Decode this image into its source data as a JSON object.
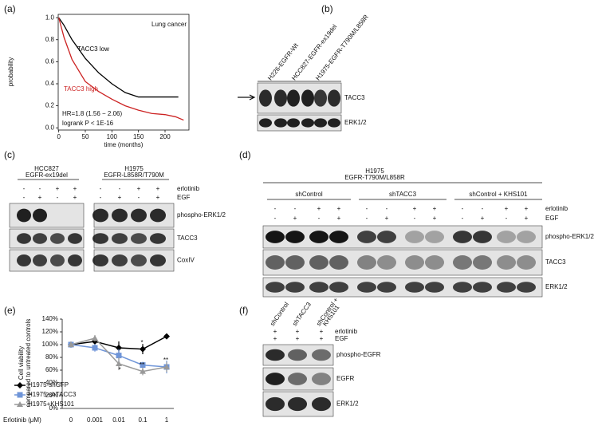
{
  "panel_labels": [
    "(a)",
    "(b)",
    "(c)",
    "(d)",
    "(e)",
    "(f)"
  ],
  "chart_data": [
    {
      "type": "line",
      "title": "Lung cancer",
      "xlabel": "time (months)",
      "ylabel": "probability",
      "xlim": [
        -1,
        245
      ],
      "ylim": [
        -0.02,
        1.03
      ],
      "xticks": [
        0,
        50,
        100,
        150,
        200
      ],
      "yticks": [
        {
          "value": 0,
          "label": "0.0"
        },
        {
          "value": 0.2,
          "label": "0.2"
        },
        {
          "value": 0.4,
          "label": "0.4"
        },
        {
          "value": 0.6,
          "label": "0.6"
        },
        {
          "value": 0.8,
          "label": "0.8"
        },
        {
          "value": 1,
          "label": "1.0"
        }
      ],
      "series": [
        {
          "name": "TACC3 low",
          "color": "#000000",
          "x": [
            0,
            10,
            25,
            50,
            75,
            100,
            125,
            150,
            175,
            200,
            225
          ],
          "values": [
            1,
            0.93,
            0.8,
            0.63,
            0.5,
            0.4,
            0.32,
            0.28,
            0.28,
            0.28,
            0.28
          ]
        },
        {
          "name": "TACC3 high",
          "color": "#cc2222",
          "x": [
            0,
            10,
            25,
            50,
            75,
            100,
            125,
            150,
            175,
            200,
            220,
            235
          ],
          "values": [
            1,
            0.82,
            0.62,
            0.42,
            0.33,
            0.26,
            0.2,
            0.16,
            0.13,
            0.12,
            0.1,
            0.07
          ]
        }
      ],
      "annotations": [
        "HR=1.8 (1.56 − 2.06)",
        "logrank P < 1E-16"
      ]
    },
    {
      "type": "line",
      "xlabel": "Erlotinib (μM)",
      "ylabel": [
        "Cell viability",
        "compared to untreated controls"
      ],
      "categories": [
        "0",
        "0.001",
        "0.01",
        "0.1",
        "1"
      ],
      "ylim": [
        0,
        140
      ],
      "yticks": [
        {
          "value": 0,
          "label": "0%"
        },
        {
          "value": 20,
          "label": "20%"
        },
        {
          "value": 40,
          "label": "40%"
        },
        {
          "value": 60,
          "label": "60%"
        },
        {
          "value": 80,
          "label": "80%"
        },
        {
          "value": 100,
          "label": "100%"
        },
        {
          "value": 120,
          "label": "120%"
        },
        {
          "value": 140,
          "label": "140%"
        }
      ],
      "series": [
        {
          "name": "H1975-shGFP",
          "color": "#000000",
          "values": [
            100,
            105,
            95,
            93,
            113
          ],
          "errors": [
            4,
            8,
            10,
            8,
            4
          ]
        },
        {
          "name": "H1975-shTACC3",
          "color": "#6f95d8",
          "values": [
            100,
            95,
            83,
            68,
            65
          ],
          "errors": [
            3,
            6,
            10,
            5,
            10
          ]
        },
        {
          "name": "H1975+KHS101",
          "color": "#999999",
          "values": [
            100,
            110,
            70,
            58,
            65
          ],
          "errors": [
            3,
            5,
            10,
            6,
            8
          ]
        }
      ],
      "annotations": [
        "*",
        "*",
        "**",
        "*",
        "**"
      ]
    }
  ],
  "panels": {
    "b": {
      "lanes": [
        "H226-EGFR-Wt",
        "HCC827-EGFR-ex19del",
        "H1975-EGFR-T790M/L858R"
      ],
      "bands": [
        "TACC3",
        "ERK1/2"
      ]
    },
    "c": {
      "groups": [
        {
          "name": [
            "HCC827",
            "EGFR-ex19del"
          ],
          "erlotinib": [
            "-",
            "-",
            "+",
            "+"
          ],
          "EGF": [
            "-",
            "+",
            "-",
            "+"
          ]
        },
        {
          "name": [
            "H1975",
            "EGFR-L858R/T790M"
          ],
          "erlotinib": [
            "-",
            "-",
            "+",
            "+"
          ],
          "EGF": [
            "-",
            "+",
            "-",
            "+"
          ]
        }
      ],
      "rows": [
        "erlotinib",
        "EGF"
      ],
      "bands": [
        "phospho-ERK1/2",
        "TACC3",
        "CoxIV"
      ]
    },
    "d": {
      "header": [
        "H1975",
        "EGFR-T790M/L858R"
      ],
      "groups": [
        {
          "name": "shControl",
          "erlotinib": [
            "-",
            "-",
            "+",
            "+"
          ],
          "EGF": [
            "-",
            "+",
            "-",
            "+"
          ]
        },
        {
          "name": "shTACC3",
          "erlotinib": [
            "-",
            "-",
            "+",
            "+"
          ],
          "EGF": [
            "-",
            "+",
            "-",
            "+"
          ]
        },
        {
          "name": "shControl + KHS101",
          "erlotinib": [
            "-",
            "-",
            "+",
            "+"
          ],
          "EGF": [
            "-",
            "+",
            "-",
            "+"
          ]
        }
      ],
      "rows": [
        "erlotinib",
        "EGF"
      ],
      "bands": [
        "phospho-ERK1/2",
        "TACC3",
        "ERK1/2"
      ]
    },
    "f": {
      "lanes": [
        [
          "shControl"
        ],
        [
          "shTACC3"
        ],
        [
          "shControl +",
          "KHS101"
        ]
      ],
      "erlotinib": [
        "+",
        "+",
        "+"
      ],
      "EGF": [
        "+",
        "+",
        "+"
      ],
      "rows": [
        "erlotinib",
        "EGF"
      ],
      "bands": [
        "phospho-EGFR",
        "EGFR",
        "ERK1/2"
      ]
    }
  }
}
